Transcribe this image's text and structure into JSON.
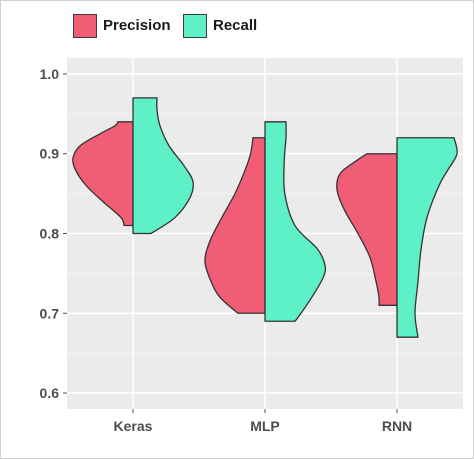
{
  "colors": {
    "panel": "#ebebeb",
    "grid_major": "#ffffff",
    "precision": "#f05d74",
    "recall": "#5ef0c7",
    "outline": "#333333"
  },
  "legend": {
    "position": "top",
    "items": [
      {
        "label": "Precision",
        "color": "#f05d74"
      },
      {
        "label": "Recall",
        "color": "#5ef0c7"
      }
    ]
  },
  "chart_data": {
    "type": "split-violin",
    "categories": [
      "Keras",
      "MLP",
      "RNN"
    ],
    "ylim": [
      0.58,
      1.02
    ],
    "yticks": [
      "0.6",
      "0.7",
      "0.8",
      "0.9",
      "1.0"
    ],
    "grid": true,
    "series": [
      {
        "name": "Precision",
        "side": "left",
        "color": "#f05d74",
        "violins": [
          {
            "category": "Keras",
            "min": 0.81,
            "max": 0.94,
            "mode": 0.895,
            "density": [
              [
                0.81,
                0.15
              ],
              [
                0.82,
                0.2
              ],
              [
                0.84,
                0.5
              ],
              [
                0.86,
                0.78
              ],
              [
                0.88,
                0.96
              ],
              [
                0.895,
                1.0
              ],
              [
                0.91,
                0.88
              ],
              [
                0.925,
                0.55
              ],
              [
                0.935,
                0.3
              ],
              [
                0.94,
                0.25
              ]
            ]
          },
          {
            "category": "MLP",
            "min": 0.7,
            "max": 0.92,
            "mode": 0.765,
            "density": [
              [
                0.7,
                0.45
              ],
              [
                0.72,
                0.75
              ],
              [
                0.74,
                0.9
              ],
              [
                0.765,
                1.0
              ],
              [
                0.79,
                0.92
              ],
              [
                0.82,
                0.72
              ],
              [
                0.85,
                0.5
              ],
              [
                0.88,
                0.33
              ],
              [
                0.9,
                0.24
              ],
              [
                0.92,
                0.2
              ]
            ]
          },
          {
            "category": "RNN",
            "min": 0.71,
            "max": 0.9,
            "mode": 0.855,
            "density": [
              [
                0.71,
                0.3
              ],
              [
                0.72,
                0.3
              ],
              [
                0.74,
                0.35
              ],
              [
                0.77,
                0.45
              ],
              [
                0.8,
                0.65
              ],
              [
                0.83,
                0.88
              ],
              [
                0.855,
                1.0
              ],
              [
                0.875,
                0.95
              ],
              [
                0.89,
                0.7
              ],
              [
                0.9,
                0.5
              ]
            ]
          }
        ]
      },
      {
        "name": "Recall",
        "side": "right",
        "color": "#5ef0c7",
        "violins": [
          {
            "category": "Keras",
            "min": 0.8,
            "max": 0.97,
            "mode": 0.865,
            "density": [
              [
                0.8,
                0.3
              ],
              [
                0.82,
                0.7
              ],
              [
                0.845,
                0.95
              ],
              [
                0.865,
                1.0
              ],
              [
                0.885,
                0.85
              ],
              [
                0.91,
                0.6
              ],
              [
                0.935,
                0.45
              ],
              [
                0.955,
                0.4
              ],
              [
                0.97,
                0.4
              ]
            ]
          },
          {
            "category": "MLP",
            "min": 0.69,
            "max": 0.94,
            "mode": 0.76,
            "density": [
              [
                0.69,
                0.5
              ],
              [
                0.7,
                0.6
              ],
              [
                0.72,
                0.78
              ],
              [
                0.745,
                0.97
              ],
              [
                0.76,
                1.0
              ],
              [
                0.78,
                0.88
              ],
              [
                0.81,
                0.5
              ],
              [
                0.85,
                0.33
              ],
              [
                0.89,
                0.32
              ],
              [
                0.92,
                0.35
              ],
              [
                0.94,
                0.35
              ]
            ]
          },
          {
            "category": "RNN",
            "min": 0.67,
            "max": 0.92,
            "mode": 0.9,
            "density": [
              [
                0.67,
                0.35
              ],
              [
                0.7,
                0.3
              ],
              [
                0.74,
                0.35
              ],
              [
                0.78,
                0.4
              ],
              [
                0.82,
                0.5
              ],
              [
                0.86,
                0.7
              ],
              [
                0.88,
                0.85
              ],
              [
                0.9,
                1.0
              ],
              [
                0.92,
                0.95
              ]
            ]
          }
        ]
      }
    ]
  }
}
